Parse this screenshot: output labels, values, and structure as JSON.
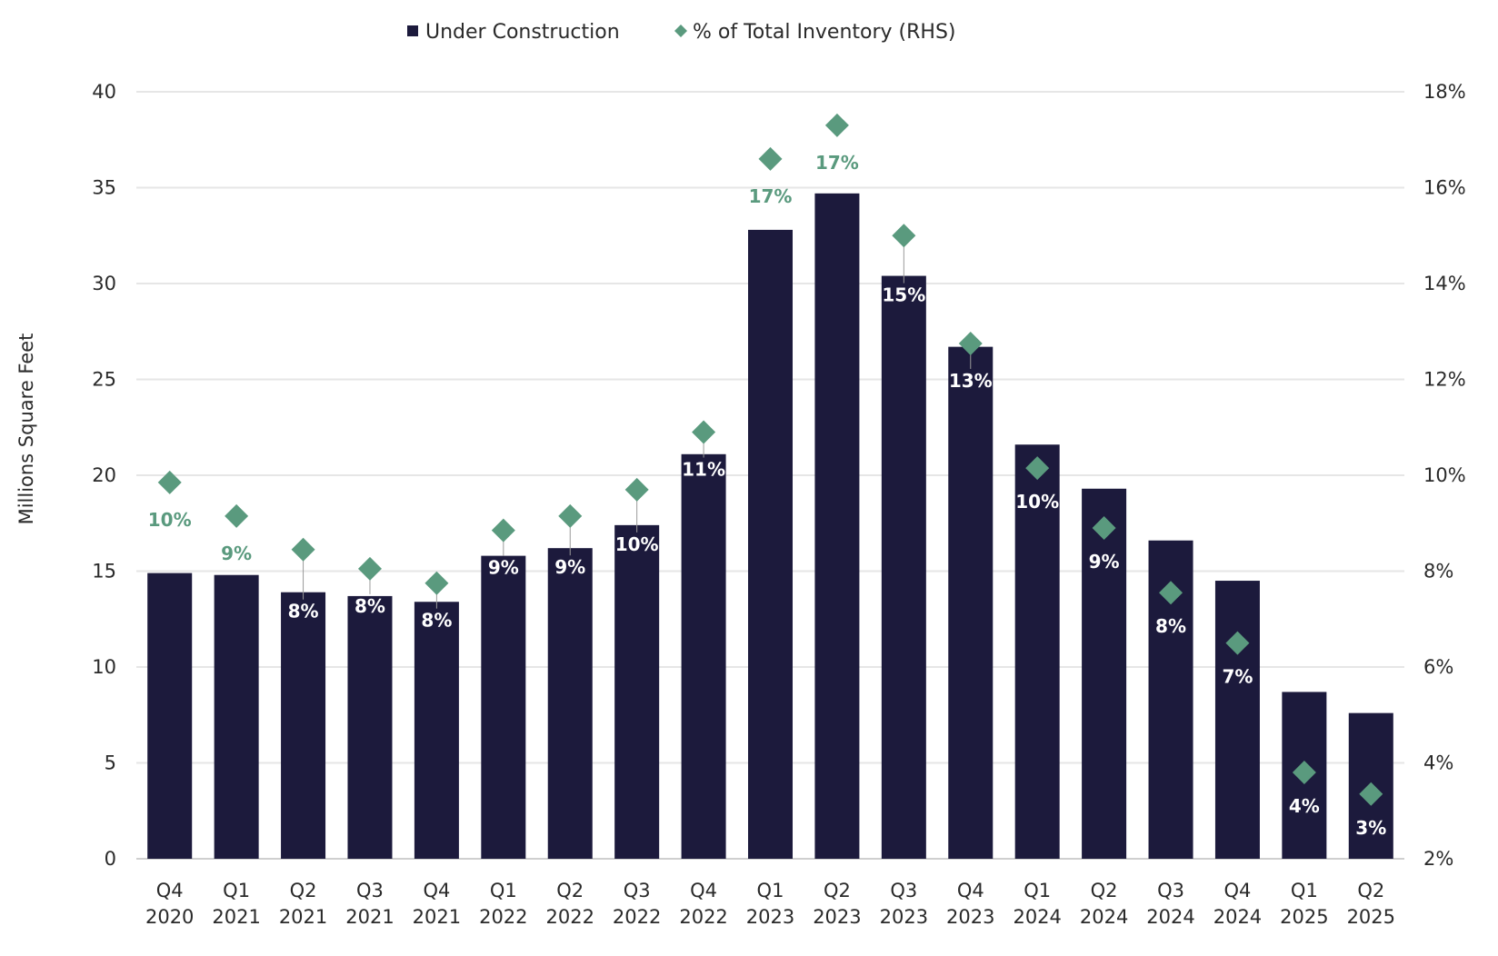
{
  "chart_data": {
    "type": "bar",
    "categories": [
      [
        "Q4",
        "2020"
      ],
      [
        "Q1",
        "2021"
      ],
      [
        "Q2",
        "2021"
      ],
      [
        "Q3",
        "2021"
      ],
      [
        "Q4",
        "2021"
      ],
      [
        "Q1",
        "2022"
      ],
      [
        "Q2",
        "2022"
      ],
      [
        "Q3",
        "2022"
      ],
      [
        "Q4",
        "2022"
      ],
      [
        "Q1",
        "2023"
      ],
      [
        "Q2",
        "2023"
      ],
      [
        "Q3",
        "2023"
      ],
      [
        "Q4",
        "2023"
      ],
      [
        "Q1",
        "2024"
      ],
      [
        "Q2",
        "2024"
      ],
      [
        "Q3",
        "2024"
      ],
      [
        "Q4",
        "2024"
      ],
      [
        "Q1",
        "2025"
      ],
      [
        "Q2",
        "2025"
      ]
    ],
    "series": [
      {
        "name": "Under Construction",
        "axis": "left",
        "type": "bar",
        "color": "#1c1a3c",
        "values": [
          14.9,
          14.8,
          13.9,
          13.7,
          13.4,
          15.8,
          16.2,
          17.4,
          21.1,
          32.8,
          34.7,
          30.4,
          26.7,
          21.6,
          19.3,
          16.6,
          14.5,
          8.7,
          7.6
        ]
      },
      {
        "name": "% of Total Inventory (RHS)",
        "axis": "right",
        "type": "scatter",
        "marker": "diamond",
        "color": "#5a9a7e",
        "values": [
          9.85,
          9.15,
          8.45,
          8.05,
          7.75,
          8.85,
          9.15,
          9.7,
          10.9,
          16.6,
          17.3,
          15.0,
          12.75,
          10.15,
          8.9,
          7.55,
          6.5,
          3.8,
          3.35
        ],
        "labels": [
          "10%",
          "9%",
          "8%",
          "8%",
          "8%",
          "9%",
          "9%",
          "10%",
          "11%",
          "17%",
          "17%",
          "15%",
          "13%",
          "10%",
          "9%",
          "8%",
          "7%",
          "4%",
          "3%"
        ]
      }
    ],
    "ylabel": "Millions Square Feet",
    "ylim": [
      0,
      40
    ],
    "yticks": [
      0,
      5,
      10,
      15,
      20,
      25,
      30,
      35,
      40
    ],
    "y2lim": [
      2,
      18
    ],
    "y2ticks": [
      "2%",
      "4%",
      "6%",
      "8%",
      "10%",
      "12%",
      "14%",
      "16%",
      "18%"
    ],
    "legend": [
      "Under Construction",
      "% of Total Inventory (RHS)"
    ],
    "legend_position": "top-center",
    "grid": true
  }
}
